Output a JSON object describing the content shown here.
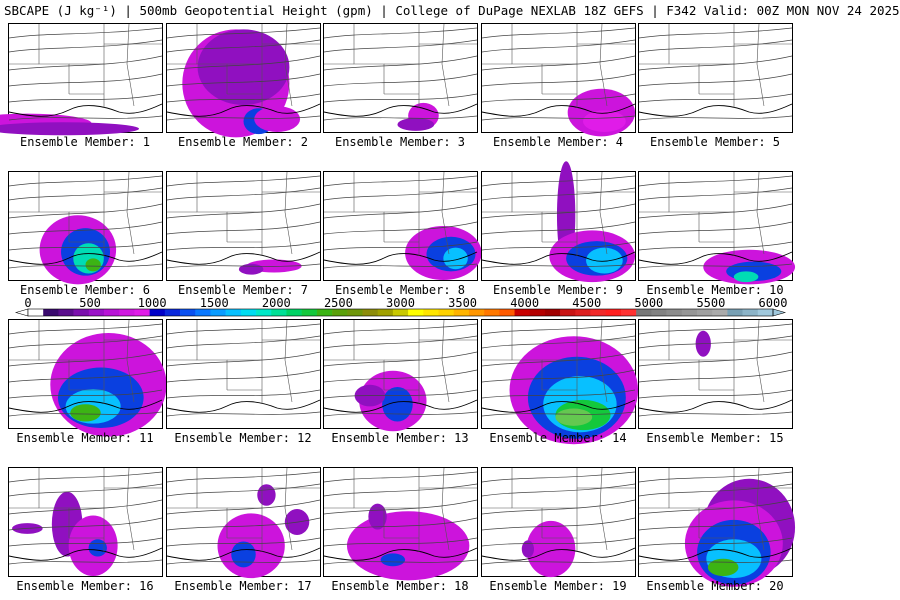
{
  "header": {
    "title": "SBCAPE (J kg⁻¹) | 500mb Geopotential Height (gpm) | College of DuPage NEXLAB 18Z GEFS | F342 Valid: 00Z MON NOV 24 2025"
  },
  "colorbar": {
    "ticks": [
      "0",
      "500",
      "1000",
      "1500",
      "2000",
      "2500",
      "3000",
      "3500",
      "4000",
      "4500",
      "5000",
      "5500",
      "6000"
    ],
    "colors": [
      "#ffffff",
      "#3a0a6e",
      "#5a0d8c",
      "#7b10ad",
      "#9b12c8",
      "#b814d6",
      "#d018e0",
      "#e01ce8",
      "#0000c8",
      "#0a28dc",
      "#0a50f0",
      "#0a78ff",
      "#0a9cff",
      "#08c0ff",
      "#00dcf0",
      "#00e8c8",
      "#00e096",
      "#00d264",
      "#14c83c",
      "#3cb414",
      "#5aa00a",
      "#6e960a",
      "#8c8c0a",
      "#a0a000",
      "#c8c800",
      "#ffff00",
      "#ffe600",
      "#ffd200",
      "#ffb400",
      "#ff9600",
      "#ff7800",
      "#ff5a00",
      "#c80000",
      "#b40000",
      "#a00000",
      "#c81414",
      "#dc1e1e",
      "#f02828",
      "#ff1e1e",
      "#ff3232",
      "#787878",
      "#828282",
      "#8c8c8c",
      "#969696",
      "#a0a0a0",
      "#aaaaaa",
      "#78a0b4",
      "#8cb4c8",
      "#a0c8dc"
    ]
  },
  "panels": [
    {
      "label": "Ensemble Member: 1",
      "blobs": [
        [
          "#cc14dc",
          0.12,
          0.92,
          0.42,
          0.09
        ],
        [
          "#9010c0",
          0.35,
          0.97,
          0.5,
          0.06
        ]
      ]
    },
    {
      "label": "Ensemble Member: 2",
      "blobs": [
        [
          "#cc14dc",
          0.45,
          0.55,
          0.35,
          0.5
        ],
        [
          "#9010c0",
          0.5,
          0.4,
          0.3,
          0.35
        ],
        [
          "#0a40e0",
          0.6,
          0.9,
          0.1,
          0.12
        ],
        [
          "#cc14dc",
          0.72,
          0.88,
          0.15,
          0.12
        ]
      ]
    },
    {
      "label": "Ensemble Member: 3",
      "blobs": [
        [
          "#cc14dc",
          0.65,
          0.85,
          0.1,
          0.12
        ],
        [
          "#9010c0",
          0.6,
          0.93,
          0.12,
          0.06
        ]
      ]
    },
    {
      "label": "Ensemble Member: 4",
      "blobs": [
        [
          "#cc14dc",
          0.78,
          0.82,
          0.22,
          0.22
        ],
        [
          "#e01ce8",
          0.8,
          0.9,
          0.14,
          0.1
        ]
      ]
    },
    {
      "label": "Ensemble Member: 5",
      "blobs": []
    },
    {
      "label": "Ensemble Member: 6",
      "blobs": [
        [
          "#cc14dc",
          0.45,
          0.72,
          0.25,
          0.32
        ],
        [
          "#0a40e0",
          0.5,
          0.74,
          0.16,
          0.22
        ],
        [
          "#00dcb4",
          0.52,
          0.8,
          0.1,
          0.14
        ],
        [
          "#3cb414",
          0.55,
          0.86,
          0.05,
          0.06
        ]
      ]
    },
    {
      "label": "Ensemble Member: 7",
      "blobs": [
        [
          "#cc14dc",
          0.7,
          0.87,
          0.18,
          0.06
        ],
        [
          "#9010c0",
          0.55,
          0.9,
          0.08,
          0.05
        ]
      ]
    },
    {
      "label": "Ensemble Member: 8",
      "blobs": [
        [
          "#cc14dc",
          0.78,
          0.75,
          0.25,
          0.25
        ],
        [
          "#0a40e0",
          0.83,
          0.76,
          0.16,
          0.16
        ],
        [
          "#08c0ff",
          0.86,
          0.8,
          0.08,
          0.1
        ]
      ]
    },
    {
      "label": "Ensemble Member: 9",
      "blobs": [
        [
          "#9010c0",
          0.55,
          0.4,
          0.06,
          0.5
        ],
        [
          "#cc14dc",
          0.72,
          0.78,
          0.28,
          0.24
        ],
        [
          "#0a40e0",
          0.75,
          0.8,
          0.2,
          0.16
        ],
        [
          "#08c0ff",
          0.8,
          0.82,
          0.12,
          0.12
        ]
      ]
    },
    {
      "label": "Ensemble Member: 10",
      "blobs": [
        [
          "#cc14dc",
          0.72,
          0.88,
          0.3,
          0.16
        ],
        [
          "#0a40e0",
          0.75,
          0.92,
          0.18,
          0.09
        ],
        [
          "#00dcb4",
          0.7,
          0.97,
          0.08,
          0.05
        ]
      ]
    },
    {
      "label": "Ensemble Member: 11",
      "blobs": [
        [
          "#cc14dc",
          0.65,
          0.6,
          0.38,
          0.48
        ],
        [
          "#0a40e0",
          0.6,
          0.72,
          0.28,
          0.28
        ],
        [
          "#08c0ff",
          0.55,
          0.8,
          0.18,
          0.16
        ],
        [
          "#3cb414",
          0.5,
          0.86,
          0.1,
          0.08
        ]
      ]
    },
    {
      "label": "Ensemble Member: 12",
      "blobs": []
    },
    {
      "label": "Ensemble Member: 13",
      "blobs": [
        [
          "#cc14dc",
          0.45,
          0.75,
          0.22,
          0.28
        ],
        [
          "#0a40e0",
          0.48,
          0.78,
          0.1,
          0.16
        ],
        [
          "#9010c0",
          0.3,
          0.7,
          0.1,
          0.1
        ]
      ]
    },
    {
      "label": "Ensemble Member: 14",
      "blobs": [
        [
          "#cc14dc",
          0.6,
          0.65,
          0.42,
          0.5
        ],
        [
          "#0a40e0",
          0.62,
          0.72,
          0.32,
          0.38
        ],
        [
          "#08c0ff",
          0.64,
          0.78,
          0.24,
          0.26
        ],
        [
          "#14c83c",
          0.66,
          0.88,
          0.18,
          0.14
        ],
        [
          "#64c850",
          0.6,
          0.9,
          0.12,
          0.08
        ]
      ]
    },
    {
      "label": "Ensemble Member: 15",
      "blobs": [
        [
          "#9010c0",
          0.42,
          0.22,
          0.05,
          0.12
        ]
      ]
    },
    {
      "label": "Ensemble Member: 16",
      "blobs": [
        [
          "#9010c0",
          0.38,
          0.52,
          0.1,
          0.3
        ],
        [
          "#cc14dc",
          0.55,
          0.72,
          0.16,
          0.28
        ],
        [
          "#0a40e0",
          0.58,
          0.74,
          0.06,
          0.08
        ],
        [
          "#9010c0",
          0.12,
          0.56,
          0.1,
          0.05
        ]
      ]
    },
    {
      "label": "Ensemble Member: 17",
      "blobs": [
        [
          "#cc14dc",
          0.55,
          0.72,
          0.22,
          0.3
        ],
        [
          "#0a40e0",
          0.5,
          0.8,
          0.08,
          0.12
        ],
        [
          "#9010c0",
          0.85,
          0.5,
          0.08,
          0.12
        ],
        [
          "#9010c0",
          0.65,
          0.25,
          0.06,
          0.1
        ]
      ]
    },
    {
      "label": "Ensemble Member: 18",
      "blobs": [
        [
          "#cc14dc",
          0.55,
          0.72,
          0.4,
          0.32
        ],
        [
          "#0a40e0",
          0.45,
          0.85,
          0.08,
          0.06
        ],
        [
          "#9010c0",
          0.35,
          0.45,
          0.06,
          0.12
        ]
      ]
    },
    {
      "label": "Ensemble Member: 19",
      "blobs": [
        [
          "#cc14dc",
          0.45,
          0.75,
          0.16,
          0.26
        ],
        [
          "#9010c0",
          0.3,
          0.75,
          0.04,
          0.08
        ]
      ]
    },
    {
      "label": "Ensemble Member: 20",
      "blobs": [
        [
          "#9010c0",
          0.72,
          0.55,
          0.3,
          0.45
        ],
        [
          "#cc14dc",
          0.62,
          0.7,
          0.32,
          0.4
        ],
        [
          "#0a40e0",
          0.62,
          0.78,
          0.24,
          0.3
        ],
        [
          "#08c0ff",
          0.62,
          0.84,
          0.18,
          0.18
        ],
        [
          "#3cb414",
          0.55,
          0.92,
          0.1,
          0.08
        ]
      ]
    }
  ]
}
